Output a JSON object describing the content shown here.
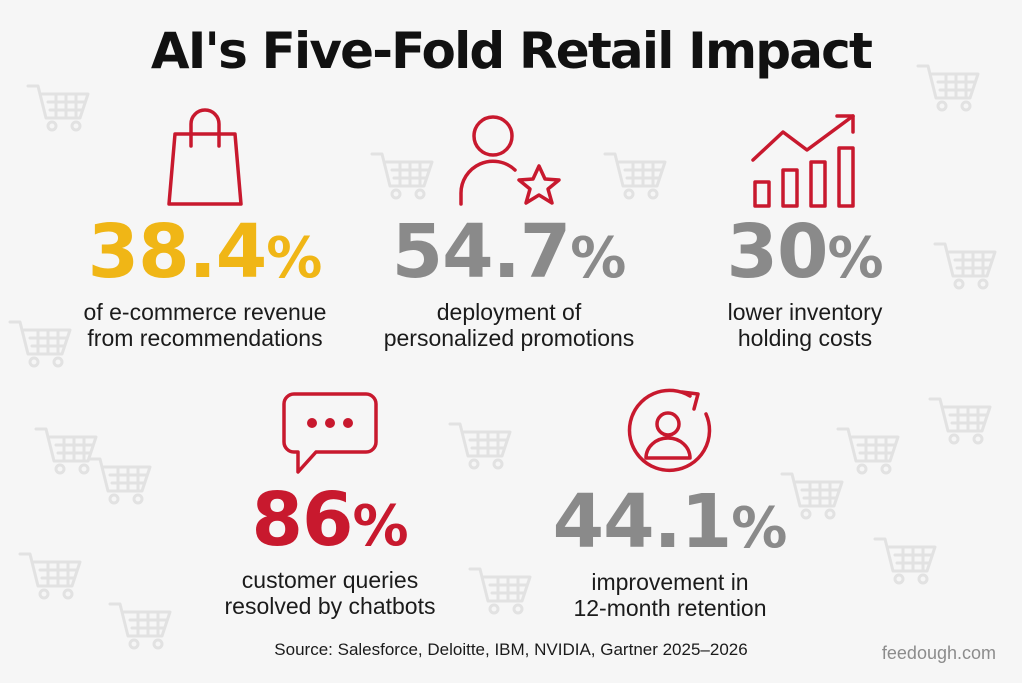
{
  "title": "AI's Five-Fold Retail Impact",
  "colors": {
    "accent_red": "#c8192e",
    "accent_yellow": "#f0b616",
    "stat_gray": "#8a8a8a"
  },
  "stats": [
    {
      "icon": "shopping-bag-icon",
      "value": "38.4",
      "unit": "%",
      "color": "#f0b616",
      "caption_lines": [
        "of e-commerce revenue",
        "from recommendations"
      ]
    },
    {
      "icon": "user-star-icon",
      "value": "54.7",
      "unit": "%",
      "color": "#8a8a8a",
      "caption_lines": [
        "deployment of",
        "personalized promotions"
      ]
    },
    {
      "icon": "growth-chart-icon",
      "value": "30",
      "unit": "%",
      "color": "#8a8a8a",
      "caption_lines": [
        "lower inventory",
        "holding costs"
      ]
    },
    {
      "icon": "chat-bubble-icon",
      "value": "86",
      "unit": "%",
      "color": "#c8192e",
      "caption_lines": [
        "customer queries",
        "resolved by chatbots"
      ]
    },
    {
      "icon": "user-refresh-icon",
      "value": "44.1",
      "unit": "%",
      "color": "#8a8a8a",
      "caption_lines": [
        "improvement in",
        "12-month retention"
      ]
    }
  ],
  "source": "Source: Salesforce, Deloitte, IBM, NVIDIA, Gartner 2025–2026",
  "brand": "feedough.com"
}
